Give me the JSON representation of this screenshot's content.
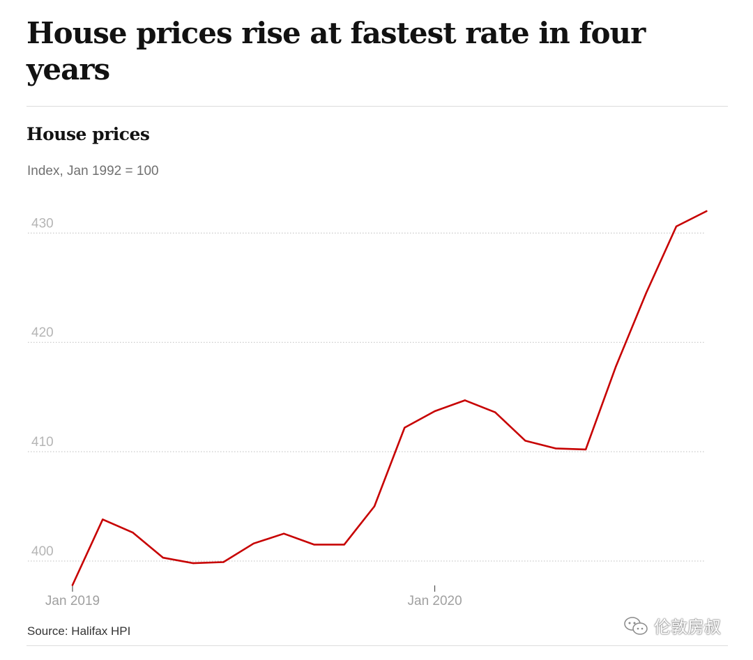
{
  "headline": "House prices rise at fastest rate in four years",
  "chart_data": {
    "type": "line",
    "title": "House prices",
    "subtitle": "Index, Jan 1992 = 100",
    "source": "Source: Halifax HPI",
    "x": [
      "Jan 2019",
      "Feb 2019",
      "Mar 2019",
      "Apr 2019",
      "May 2019",
      "Jun 2019",
      "Jul 2019",
      "Aug 2019",
      "Sep 2019",
      "Oct 2019",
      "Nov 2019",
      "Dec 2019",
      "Jan 2020",
      "Feb 2020",
      "Mar 2020",
      "Apr 2020",
      "May 2020",
      "Jun 2020",
      "Jul 2020",
      "Aug 2020",
      "Sep 2020",
      "Oct 2020"
    ],
    "series": [
      {
        "name": "House prices",
        "color": "#c70000",
        "values": [
          397.8,
          403.8,
          402.6,
          400.3,
          399.8,
          399.9,
          401.6,
          402.5,
          401.5,
          401.5,
          405.0,
          412.2,
          413.7,
          414.7,
          413.6,
          411.0,
          410.3,
          410.2,
          417.8,
          424.5,
          430.6,
          432.0
        ]
      }
    ],
    "xticks": [
      {
        "index": 0,
        "label": "Jan 2019"
      },
      {
        "index": 12,
        "label": "Jan 2020"
      }
    ],
    "yticks": [
      400,
      410,
      420,
      430
    ],
    "ylim": [
      397,
      432.7
    ],
    "grid": true,
    "grid_style": "dotted"
  },
  "watermark": "伦敦房叔"
}
